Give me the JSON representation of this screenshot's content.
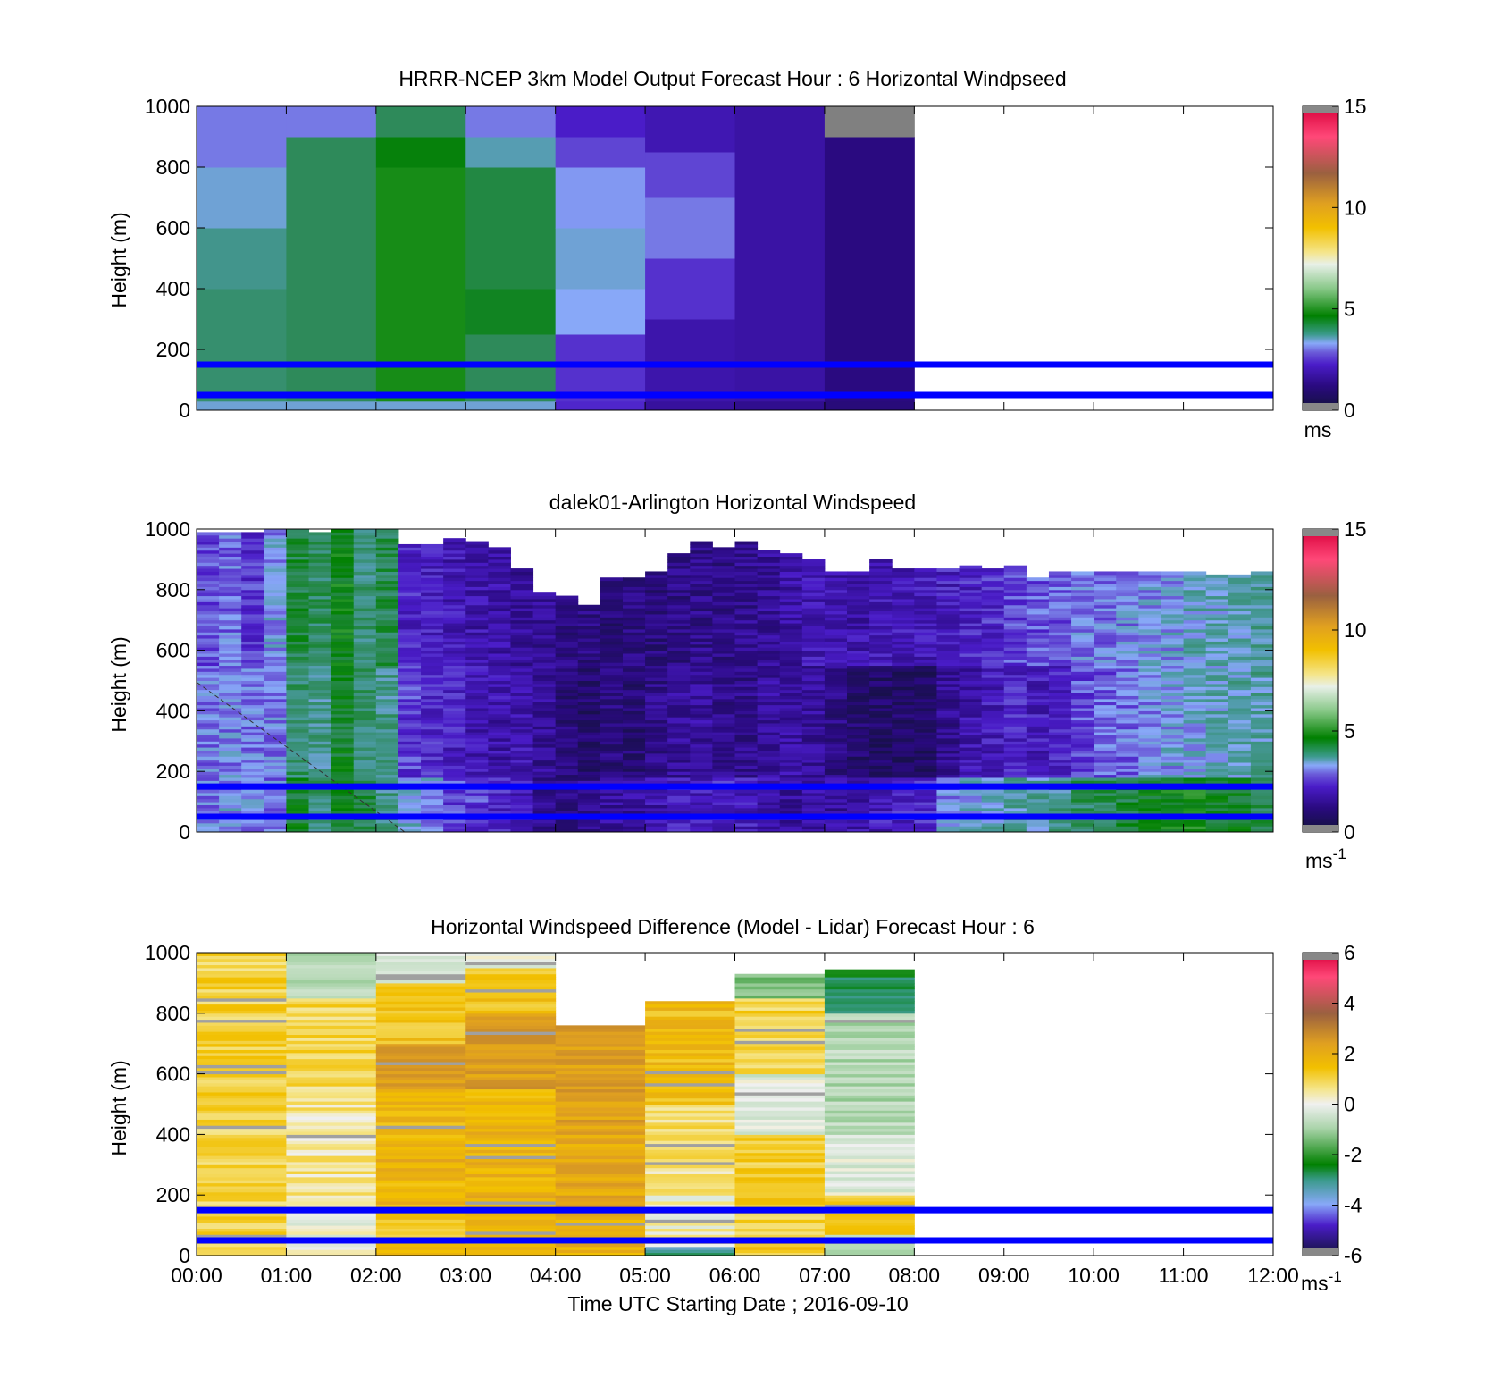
{
  "figure": {
    "xlabel": "Time UTC  Starting Date ; 2016-09-10",
    "x_tick_labels": [
      "00:00",
      "01:00",
      "02:00",
      "03:00",
      "04:00",
      "05:00",
      "06:00",
      "07:00",
      "08:00",
      "09:00",
      "10:00",
      "11:00",
      "12:00"
    ],
    "reference_lines_m": [
      50,
      150
    ],
    "reference_line_color": "#0000ff"
  },
  "chart_data": [
    {
      "type": "heatmap",
      "title": "HRRR-NCEP 3km Model Output   Forecast Hour : 6 Horizontal Windpseed",
      "ylabel": "Height (m)",
      "ylim": [
        0,
        1000
      ],
      "y_ticks": [
        0,
        200,
        400,
        600,
        800,
        1000
      ],
      "xlim_hours": [
        0,
        12
      ],
      "colorbar": {
        "range": [
          0,
          15
        ],
        "ticks": [
          0,
          5,
          10,
          15
        ],
        "unit": "ms",
        "unit_sup": ""
      },
      "columns": [
        {
          "t": 0,
          "cells": [
            [
              0,
              30,
              3.5
            ],
            [
              30,
              400,
              4.3
            ],
            [
              400,
              600,
              4.0
            ],
            [
              600,
              800,
              3.5
            ],
            [
              800,
              1000,
              3.0
            ]
          ]
        },
        {
          "t": 1,
          "cells": [
            [
              0,
              30,
              3.5
            ],
            [
              30,
              900,
              4.5
            ],
            [
              900,
              1000,
              3.0
            ]
          ]
        },
        {
          "t": 2,
          "cells": [
            [
              0,
              30,
              3.5
            ],
            [
              30,
              800,
              5.5
            ],
            [
              800,
              900,
              5.2
            ],
            [
              900,
              1000,
              4.5
            ]
          ]
        },
        {
          "t": 3,
          "cells": [
            [
              0,
              30,
              3.5
            ],
            [
              30,
              250,
              4.5
            ],
            [
              250,
              400,
              5.0
            ],
            [
              400,
              800,
              4.7
            ],
            [
              800,
              900,
              3.7
            ],
            [
              900,
              1000,
              3.0
            ]
          ]
        },
        {
          "t": 4,
          "cells": [
            [
              0,
              30,
              2.3
            ],
            [
              30,
              250,
              2.4
            ],
            [
              250,
              400,
              3.3
            ],
            [
              400,
              600,
              3.5
            ],
            [
              600,
              800,
              3.2
            ],
            [
              800,
              900,
              2.6
            ],
            [
              900,
              1000,
              2.2
            ]
          ]
        },
        {
          "t": 5,
          "cells": [
            [
              0,
              30,
              1.6
            ],
            [
              30,
              300,
              1.8
            ],
            [
              300,
              500,
              2.4
            ],
            [
              500,
              700,
              3.0
            ],
            [
              700,
              850,
              2.6
            ],
            [
              850,
              1000,
              1.9
            ]
          ]
        },
        {
          "t": 6,
          "cells": [
            [
              0,
              30,
              1.4
            ],
            [
              30,
              1000,
              1.7
            ]
          ]
        },
        {
          "t": 7,
          "cells": [
            [
              0,
              30,
              1.1
            ],
            [
              30,
              900,
              1.2
            ],
            [
              900,
              1000,
              -1
            ]
          ]
        }
      ]
    },
    {
      "type": "heatmap",
      "title": "dalek01-Arlington  Horizontal Windspeed",
      "ylabel": "Height (m)",
      "ylim": [
        0,
        1000
      ],
      "y_ticks": [
        0,
        200,
        400,
        600,
        800,
        1000
      ],
      "xlim_hours": [
        0,
        12
      ],
      "colorbar": {
        "range": [
          0,
          15
        ],
        "ticks": [
          0,
          5,
          10,
          15
        ],
        "unit": "ms",
        "unit_sup": "-1"
      },
      "segment_hours": [
        0,
        0.25,
        0.5,
        0.75,
        1,
        1.25,
        1.5,
        1.75,
        2,
        2.25,
        2.5,
        2.75,
        3,
        3.25,
        3.5,
        3.75,
        4,
        4.25,
        4.5,
        4.75,
        5,
        5.25,
        5.5,
        5.75,
        6,
        6.25,
        6.5,
        6.75,
        7,
        7.25,
        7.5,
        7.75,
        8,
        8.25,
        8.5,
        8.75,
        9,
        9.25,
        9.5,
        9.75,
        10,
        10.25,
        10.5,
        10.75,
        11,
        11.25,
        11.5,
        11.75
      ],
      "top_heights_m": [
        990,
        990,
        990,
        1000,
        1000,
        990,
        1000,
        1000,
        1000,
        950,
        950,
        970,
        960,
        940,
        870,
        790,
        780,
        750,
        840,
        840,
        860,
        920,
        960,
        940,
        960,
        930,
        920,
        900,
        860,
        860,
        900,
        870,
        870,
        870,
        880,
        870,
        880,
        840,
        860,
        860,
        860,
        860,
        860,
        860,
        860,
        850,
        850,
        860
      ],
      "low_level_m": [
        3.0,
        3.2,
        3.1,
        3.0,
        5.0,
        4.2,
        5.0,
        4.6,
        4.0,
        3.6,
        3.2,
        2.6,
        2.5,
        2.2,
        2.0,
        1.4,
        1.2,
        1.4,
        1.6,
        1.6,
        1.8,
        2.0,
        2.0,
        2.2,
        2.0,
        1.8,
        1.6,
        1.8,
        1.6,
        1.8,
        2.0,
        2.2,
        2.2,
        3.2,
        3.4,
        3.6,
        3.8,
        3.8,
        4.0,
        4.4,
        4.6,
        4.8,
        5.0,
        5.2,
        5.4,
        5.0,
        5.0,
        4.6
      ],
      "mid_level_m": [
        3.0,
        3.1,
        3.0,
        3.0,
        4.3,
        4.0,
        5.0,
        4.2,
        4.0,
        2.5,
        2.3,
        2.1,
        1.9,
        1.8,
        1.9,
        1.5,
        1.1,
        0.9,
        1.1,
        1.0,
        1.3,
        1.5,
        1.6,
        1.3,
        1.3,
        1.6,
        1.7,
        1.5,
        1.2,
        0.9,
        0.8,
        0.8,
        0.7,
        1.4,
        1.8,
        2.0,
        2.2,
        2.0,
        2.1,
        2.6,
        2.8,
        2.9,
        3.2,
        3.3,
        3.4,
        3.6,
        3.7,
        3.8
      ],
      "upper_level_m": [
        2.6,
        2.9,
        2.4,
        3.2,
        4.7,
        4.4,
        5.2,
        4.2,
        4.6,
        2.2,
        2.1,
        1.9,
        1.8,
        1.7,
        1.6,
        1.4,
        1.2,
        1.2,
        1.0,
        1.2,
        1.1,
        1.2,
        1.3,
        1.3,
        1.4,
        1.5,
        1.7,
        1.9,
        1.8,
        1.8,
        1.9,
        2.0,
        2.0,
        2.1,
        2.2,
        2.3,
        2.6,
        2.7,
        2.8,
        3.0,
        3.0,
        3.1,
        3.2,
        3.3,
        3.6,
        3.6,
        3.7,
        3.9
      ]
    },
    {
      "type": "heatmap",
      "title": "Horizontal Windspeed Difference (Model - Lidar) Forecast Hour : 6",
      "xlabel": "Time UTC  Starting Date ; 2016-09-10",
      "ylabel": "Height (m)",
      "ylim": [
        0,
        1000
      ],
      "y_ticks": [
        0,
        200,
        400,
        600,
        800,
        1000
      ],
      "xlim_hours": [
        0,
        12
      ],
      "colorbar": {
        "range": [
          -6,
          6
        ],
        "ticks": [
          -6,
          -4,
          -2,
          0,
          2,
          4,
          6
        ],
        "unit": "ms",
        "unit_sup": "-1"
      },
      "columns": [
        {
          "t": 0,
          "top": 1000,
          "cells": [
            [
              0,
              1000,
              0.8
            ]
          ]
        },
        {
          "t": 1,
          "top": 1000,
          "cells": [
            [
              0,
              150,
              0.0
            ],
            [
              150,
              550,
              0.4
            ],
            [
              550,
              850,
              0.7
            ],
            [
              850,
              1000,
              -0.8
            ]
          ]
        },
        {
          "t": 2,
          "top": 1000,
          "cells": [
            [
              0,
              150,
              1.2
            ],
            [
              150,
              550,
              1.5
            ],
            [
              550,
              700,
              2.0
            ],
            [
              700,
              900,
              1.1
            ],
            [
              900,
              1000,
              -0.4
            ]
          ]
        },
        {
          "t": 3,
          "top": 1000,
          "cells": [
            [
              0,
              150,
              1.4
            ],
            [
              150,
              550,
              1.5
            ],
            [
              550,
              800,
              2.1
            ],
            [
              800,
              950,
              1.2
            ],
            [
              950,
              1000,
              -0.2
            ]
          ]
        },
        {
          "t": 4,
          "top": 760,
          "cells": [
            [
              0,
              150,
              1.6
            ],
            [
              150,
              400,
              1.8
            ],
            [
              400,
              760,
              2.0
            ]
          ]
        },
        {
          "t": 5,
          "top": 840,
          "cells": [
            [
              0,
              30,
              -3.2
            ],
            [
              30,
              200,
              0.1
            ],
            [
              200,
              500,
              0.5
            ],
            [
              500,
              840,
              1.3
            ]
          ]
        },
        {
          "t": 6,
          "top": 930,
          "cells": [
            [
              0,
              70,
              1.0
            ],
            [
              70,
              400,
              0.9
            ],
            [
              400,
              600,
              -0.3
            ],
            [
              600,
              850,
              0.8
            ],
            [
              850,
              930,
              -1.4
            ]
          ]
        },
        {
          "t": 7,
          "top": 945,
          "cells": [
            [
              0,
              70,
              -0.6
            ],
            [
              70,
              200,
              0.9
            ],
            [
              200,
              400,
              -0.2
            ],
            [
              400,
              800,
              -0.8
            ],
            [
              800,
              945,
              -2.6
            ]
          ]
        }
      ]
    }
  ]
}
